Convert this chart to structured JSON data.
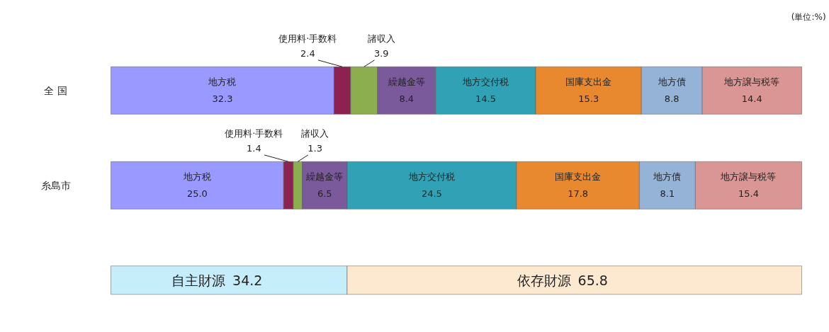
{
  "chart_data": {
    "type": "bar",
    "orientation": "horizontal",
    "stacked": true,
    "categories": [
      "全 国",
      "糸島市",
      null
    ],
    "series": [
      {
        "name": "地方税",
        "color": "#9999ff",
        "values": [
          32.3,
          25.0,
          null
        ],
        "value_labels": [
          "32.3",
          "25.0",
          null
        ]
      },
      {
        "name": "使用料·手数料",
        "color": "#8b2252",
        "values": [
          2.4,
          1.4,
          null
        ],
        "value_labels": [
          "2.4",
          "1.4",
          null
        ]
      },
      {
        "name": "諸収入",
        "color": "#8cae4f",
        "values": [
          3.9,
          1.3,
          null
        ],
        "value_labels": [
          "3.9",
          "1.3",
          null
        ]
      },
      {
        "name": "繰越金等",
        "color": "#7a5a9a",
        "values": [
          8.4,
          6.5,
          null
        ],
        "value_labels": [
          "8.4",
          "6.5",
          null
        ]
      },
      {
        "name": "地方交付税",
        "color": "#31a2b5",
        "values": [
          14.5,
          24.5,
          null
        ],
        "value_labels": [
          "14.5",
          "24.5",
          null
        ]
      },
      {
        "name": "国庫支出金",
        "color": "#e8892f",
        "values": [
          15.3,
          17.8,
          null
        ],
        "value_labels": [
          "15.3",
          "17.8",
          null
        ]
      },
      {
        "name": "地方債",
        "color": "#95b3d7",
        "values": [
          8.8,
          8.1,
          null
        ],
        "value_labels": [
          "8.8",
          "8.1",
          null
        ]
      },
      {
        "name": "地方譲与税等",
        "color": "#d99694",
        "values": [
          14.4,
          15.4,
          null
        ],
        "value_labels": [
          "14.4",
          "15.4",
          null
        ]
      },
      {
        "name": "自主財源",
        "color": "#c6eefa",
        "values": [
          null,
          null,
          34.2
        ],
        "value_labels": [
          null,
          null,
          "34.2"
        ]
      },
      {
        "name": "依存財源",
        "color": "#fde9d0",
        "values": [
          null,
          null,
          65.8
        ],
        "value_labels": [
          null,
          null,
          "65.8"
        ]
      }
    ],
    "annotations": [
      "(単位:%)"
    ]
  }
}
